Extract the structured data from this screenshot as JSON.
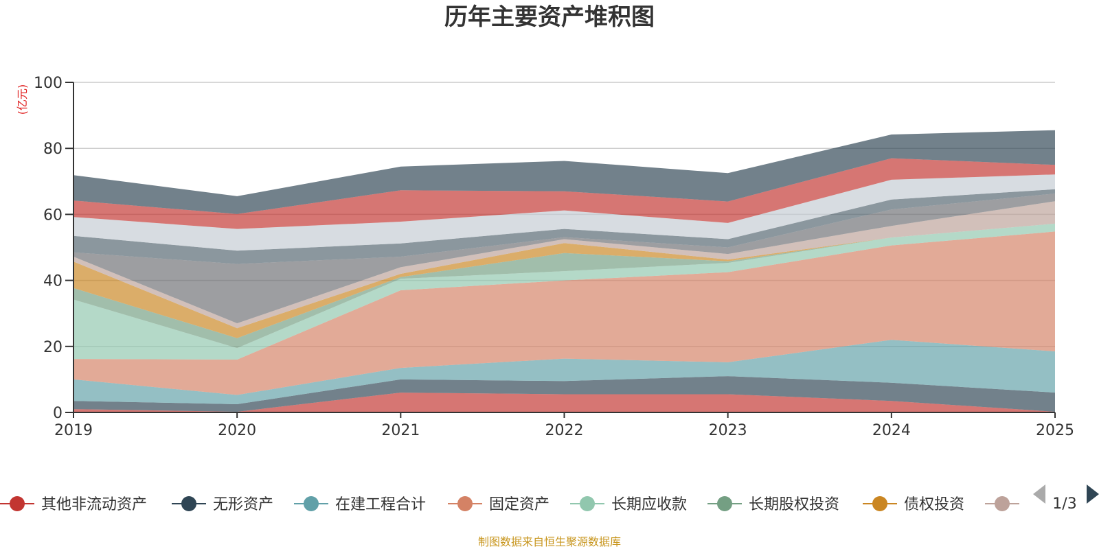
{
  "chart_data": {
    "type": "area",
    "stacked": true,
    "title": "历年主要资产堆积图",
    "unit": "(亿元)",
    "x": [
      "2019",
      "2020",
      "2021",
      "2022",
      "2023",
      "2024",
      "2025"
    ],
    "ylim": [
      0,
      100
    ],
    "yticks": [
      0,
      20,
      40,
      60,
      80,
      100
    ],
    "grid": true,
    "series": [
      {
        "name": "其他非流动资产",
        "color": "#c23531",
        "values": [
          1.0,
          0.2,
          6.0,
          5.5,
          5.5,
          3.5,
          0.2
        ],
        "in_legend": true
      },
      {
        "name": "无形资产",
        "color": "#2f4554",
        "values": [
          2.5,
          2.3,
          4.0,
          4.0,
          5.5,
          5.5,
          5.8
        ],
        "in_legend": true
      },
      {
        "name": "在建工程合计",
        "color": "#61a0a8",
        "values": [
          6.5,
          2.8,
          3.5,
          6.8,
          4.2,
          13.0,
          12.5
        ],
        "in_legend": true
      },
      {
        "name": "固定资产",
        "color": "#d48265",
        "values": [
          6.2,
          10.7,
          23.5,
          23.7,
          27.3,
          28.6,
          36.3
        ],
        "in_legend": true
      },
      {
        "name": "长期应收款",
        "color": "#91c7ae",
        "values": [
          18.0,
          3.5,
          3.5,
          2.8,
          2.8,
          2.4,
          2.4
        ],
        "in_legend": true
      },
      {
        "name": "长期股权投资",
        "color": "#749f83",
        "values": [
          3.5,
          3.0,
          0.5,
          5.5,
          0.5,
          0.0,
          0.0
        ],
        "in_legend": true
      },
      {
        "name": "债权投资",
        "color": "#ca8622",
        "values": [
          8.0,
          3.0,
          1.0,
          3.0,
          0.5,
          0.0,
          0.0
        ],
        "in_legend": true
      },
      {
        "name": "",
        "color": "#bda29a",
        "values": [
          1.5,
          1.5,
          2.0,
          1.2,
          1.7,
          3.5,
          6.8
        ],
        "in_legend": true
      },
      {
        "name": "",
        "color": "#6e7074",
        "values": [
          1.3,
          18.0,
          3.2,
          0.6,
          2.0,
          5.0,
          2.3
        ],
        "in_legend": false
      },
      {
        "name": "",
        "color": "#546570",
        "values": [
          5.0,
          4.0,
          4.0,
          2.5,
          2.5,
          3.0,
          1.3
        ],
        "in_legend": false
      },
      {
        "name": "",
        "color": "#c4ccd3",
        "values": [
          5.7,
          6.6,
          6.6,
          5.6,
          4.9,
          6.0,
          4.5
        ],
        "in_legend": false
      },
      {
        "name": "",
        "color": "#c23531",
        "values": [
          5.0,
          4.5,
          9.5,
          5.8,
          6.5,
          6.5,
          2.9
        ],
        "in_legend": false
      },
      {
        "name": "",
        "color": "#2f4554",
        "values": [
          7.7,
          5.4,
          7.2,
          9.2,
          8.6,
          7.2,
          10.5
        ],
        "in_legend": false
      }
    ],
    "legend": {
      "position": "bottom",
      "page": "1/3"
    },
    "source": "制图数据来自恒生聚源数据库"
  }
}
